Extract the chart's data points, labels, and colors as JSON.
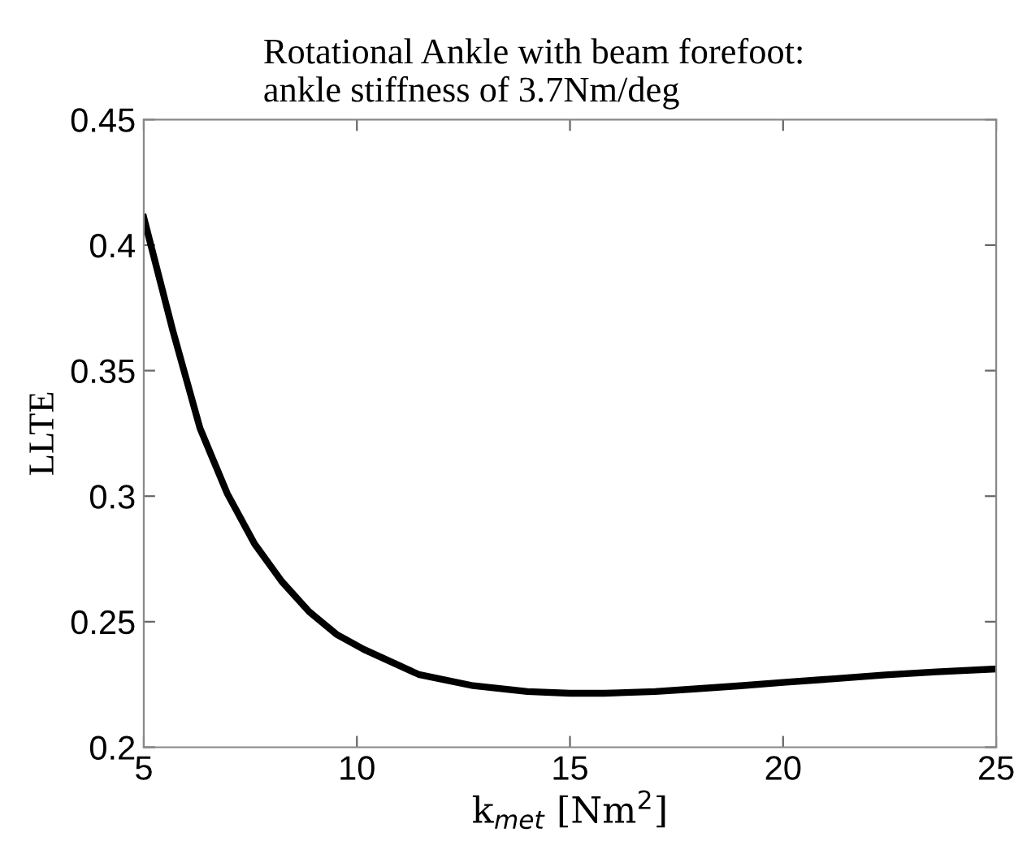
{
  "chart_data": {
    "type": "line",
    "title": "Rotational Ankle with beam forefoot:\nankle stiffness of 3.7Nm/deg",
    "xlabel": "k$_{met}$ [Nm$^{2}$]",
    "ylabel": "LLTE",
    "series": [
      {
        "color": "#000000",
        "x": [
          5,
          5.68,
          6.32,
          6.96,
          7.6,
          8.24,
          8.88,
          9.52,
          10.16,
          11.45,
          12.73,
          14.0,
          15.0,
          15.8,
          17.0,
          17.9,
          19.0,
          20.0,
          21.2,
          22.4,
          23.6,
          25
        ],
        "values": [
          0.411,
          0.366,
          0.327,
          0.301,
          0.281,
          0.266,
          0.254,
          0.245,
          0.239,
          0.229,
          0.2245,
          0.2222,
          0.2215,
          0.2215,
          0.2222,
          0.2232,
          0.2245,
          0.2258,
          0.2273,
          0.2288,
          0.23,
          0.2312
        ]
      }
    ],
    "xlim": [
      5,
      25
    ],
    "ylim": [
      0.2,
      0.45
    ],
    "xticks": [
      5,
      10,
      15,
      20,
      25
    ],
    "yticks": [
      0.2,
      0.25,
      0.3,
      0.35,
      0.4,
      0.45
    ],
    "grid": false,
    "legend": false,
    "marker": "none",
    "line_style": "solid"
  }
}
